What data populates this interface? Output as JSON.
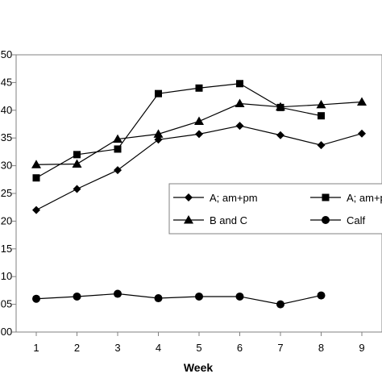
{
  "chart_data": {
    "type": "line",
    "xlabel": "Week",
    "ylabel": "",
    "x": [
      1,
      2,
      3,
      4,
      5,
      6,
      7,
      8,
      9
    ],
    "xlim": [
      0.5,
      9.5
    ],
    "y_ticks": [
      "00",
      "05",
      "10",
      "15",
      "20",
      "25",
      "30",
      "35",
      "40",
      "45",
      "50"
    ],
    "ylim": [
      0,
      50
    ],
    "grid": false,
    "legend_position": "center-right",
    "series": [
      {
        "name": "A; am+pm",
        "marker": "diamond",
        "values": [
          22,
          25.8,
          29.2,
          34.7,
          35.7,
          37.2,
          35.5,
          33.7,
          35.8
        ]
      },
      {
        "name": "A; am+pm",
        "marker": "square",
        "values": [
          27.8,
          32,
          33,
          43,
          44,
          44.8,
          40.5,
          39,
          null
        ]
      },
      {
        "name": "B and C",
        "marker": "triangle",
        "values": [
          30.2,
          30.3,
          34.8,
          35.7,
          38,
          41.2,
          40.6,
          41,
          41.5
        ]
      },
      {
        "name": "Calf",
        "marker": "circle",
        "values": [
          6,
          6.4,
          6.9,
          6.1,
          6.4,
          6.4,
          5,
          6.6,
          null
        ]
      }
    ]
  }
}
